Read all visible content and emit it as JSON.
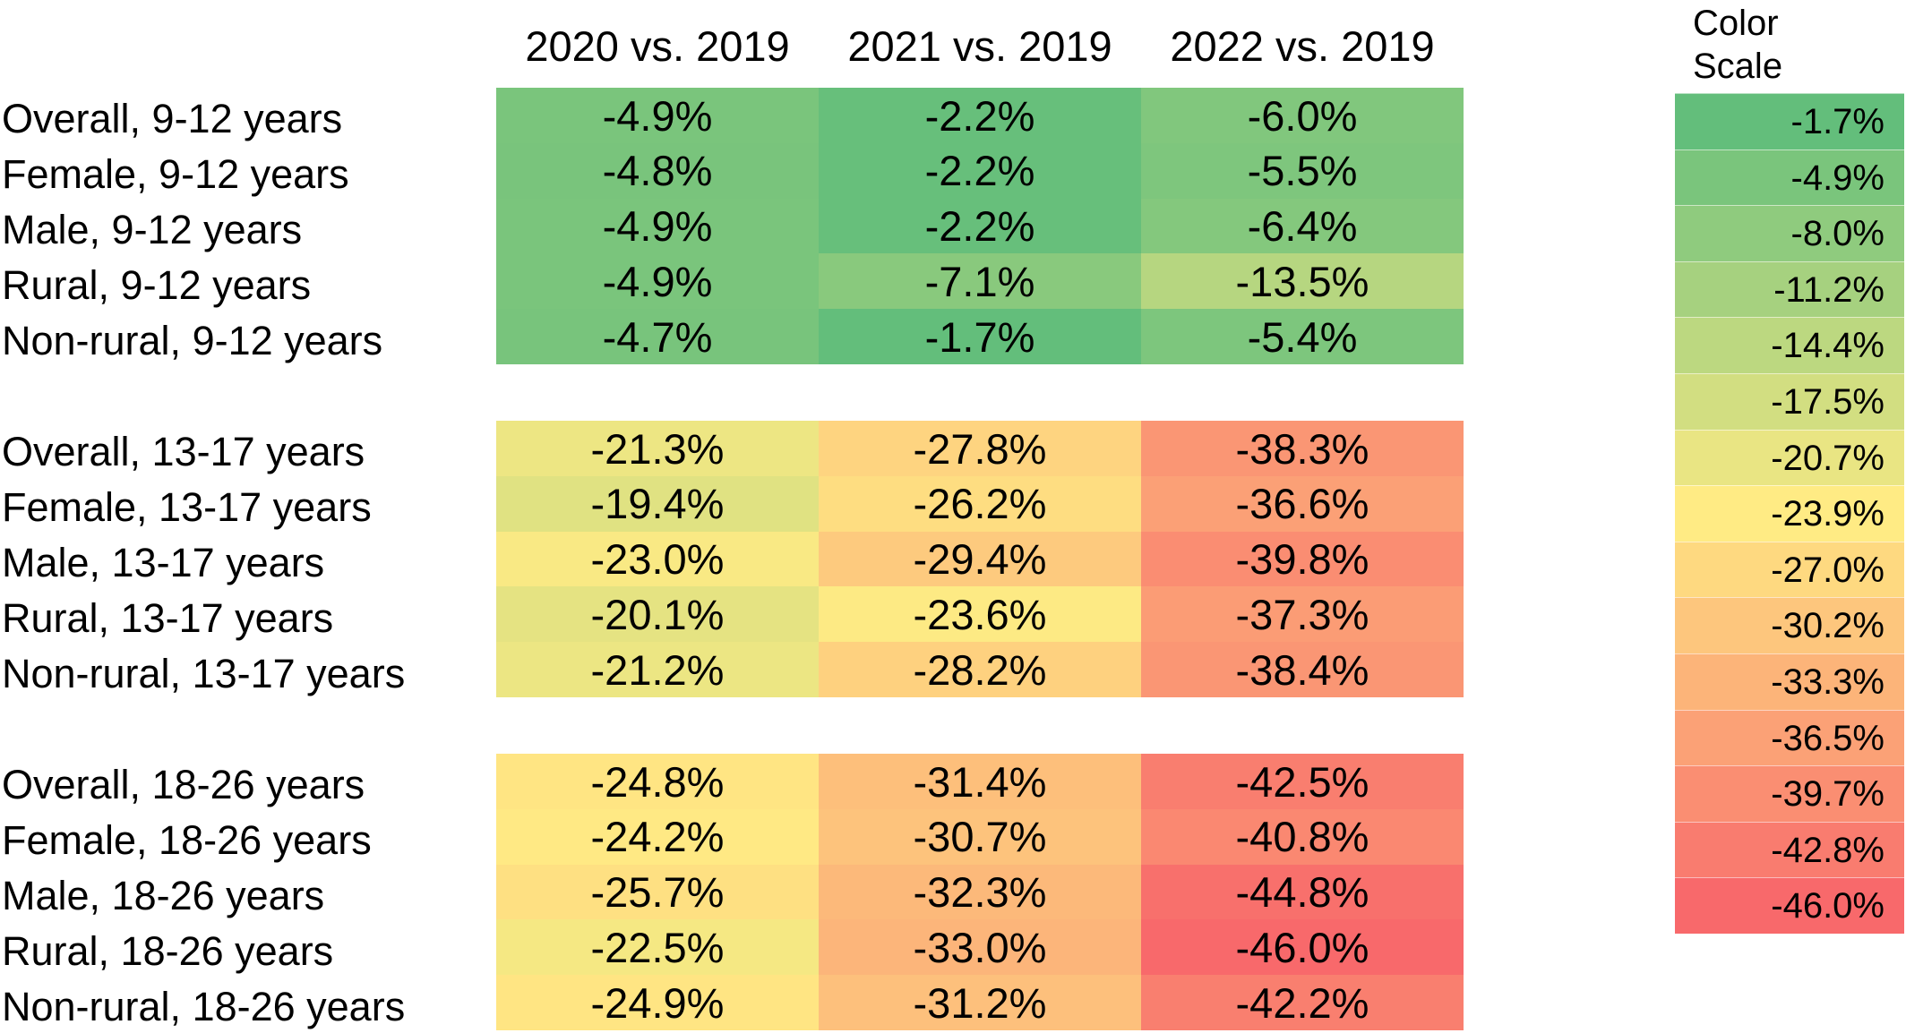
{
  "chart_data": {
    "type": "heatmap",
    "columns": [
      "2020 vs. 2019",
      "2021 vs. 2019",
      "2022 vs. 2019"
    ],
    "groups": [
      {
        "rows": [
          {
            "label": "Overall, 9-12 years",
            "values": [
              -4.9,
              -2.2,
              -6.0
            ]
          },
          {
            "label": "Female, 9-12 years",
            "values": [
              -4.8,
              -2.2,
              -5.5
            ]
          },
          {
            "label": "Male, 9-12 years",
            "values": [
              -4.9,
              -2.2,
              -6.4
            ]
          },
          {
            "label": "Rural, 9-12 years",
            "values": [
              -4.9,
              -7.1,
              -13.5
            ]
          },
          {
            "label": "Non-rural, 9-12 years",
            "values": [
              -4.7,
              -1.7,
              -5.4
            ]
          }
        ]
      },
      {
        "rows": [
          {
            "label": "Overall, 13-17 years",
            "values": [
              -21.3,
              -27.8,
              -38.3
            ]
          },
          {
            "label": "Female, 13-17 years",
            "values": [
              -19.4,
              -26.2,
              -36.6
            ]
          },
          {
            "label": "Male, 13-17 years",
            "values": [
              -23.0,
              -29.4,
              -39.8
            ]
          },
          {
            "label": "Rural, 13-17 years",
            "values": [
              -20.1,
              -23.6,
              -37.3
            ]
          },
          {
            "label": "Non-rural, 13-17 years",
            "values": [
              -21.2,
              -28.2,
              -38.4
            ]
          }
        ]
      },
      {
        "rows": [
          {
            "label": "Overall, 18-26 years",
            "values": [
              -24.8,
              -31.4,
              -42.5
            ]
          },
          {
            "label": "Female, 18-26 years",
            "values": [
              -24.2,
              -30.7,
              -40.8
            ]
          },
          {
            "label": "Male, 18-26 years",
            "values": [
              -25.7,
              -32.3,
              -44.8
            ]
          },
          {
            "label": "Rural, 18-26 years",
            "values": [
              -22.5,
              -33.0,
              -46.0
            ]
          },
          {
            "label": "Non-rural, 18-26 years",
            "values": [
              -24.9,
              -31.2,
              -42.2
            ]
          }
        ]
      }
    ],
    "color_scale": {
      "title": "Color Scale",
      "values": [
        -1.7,
        -4.9,
        -8.0,
        -11.2,
        -14.4,
        -17.5,
        -20.7,
        -23.9,
        -27.0,
        -30.2,
        -33.3,
        -36.5,
        -39.7,
        -42.8,
        -46.0
      ],
      "colors": {
        "green": "#63be7b",
        "yellow": "#ffeb84",
        "red": "#f8696b"
      }
    },
    "unit_suffix": "%"
  }
}
